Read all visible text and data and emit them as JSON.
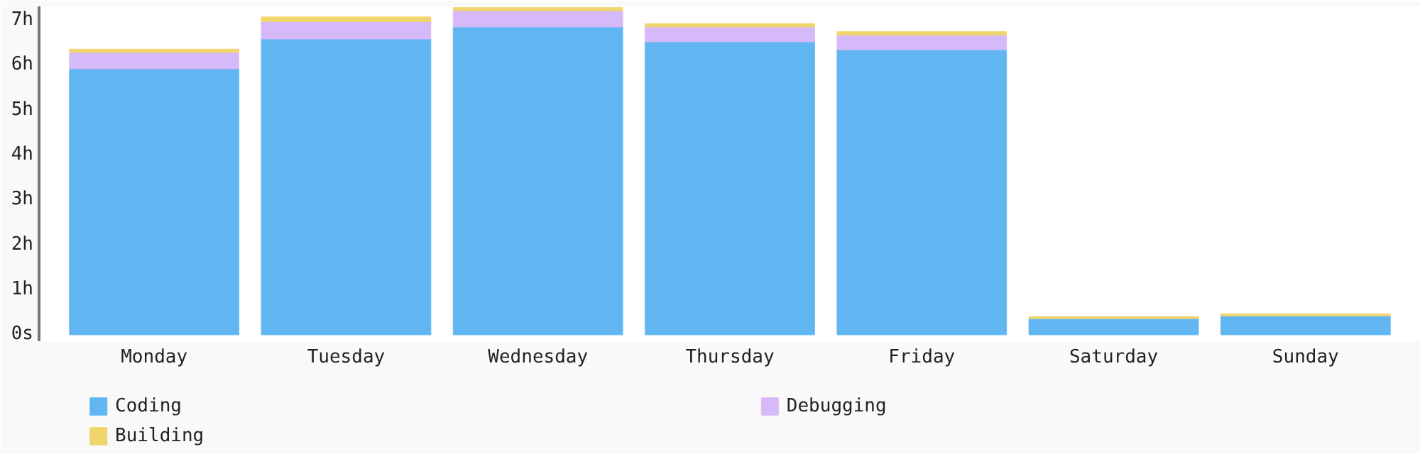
{
  "chart_data": {
    "type": "bar",
    "stacked": true,
    "categories": [
      "Monday",
      "Tuesday",
      "Wednesday",
      "Thursday",
      "Friday",
      "Saturday",
      "Sunday"
    ],
    "series": [
      {
        "name": "Coding",
        "color": "#61b6f2",
        "values": [
          5.92,
          6.58,
          6.85,
          6.52,
          6.34,
          0.36,
          0.42
        ]
      },
      {
        "name": "Debugging",
        "color": "#d6b9f8",
        "values": [
          0.36,
          0.39,
          0.36,
          0.33,
          0.33,
          0,
          0
        ]
      },
      {
        "name": "Building",
        "color": "#efd56c",
        "values": [
          0.06,
          0.09,
          0.06,
          0.06,
          0.06,
          0.03,
          0.03
        ]
      }
    ],
    "ylim": [
      -0.15,
      7.3
    ],
    "yticks": [
      {
        "value": 0,
        "label": "0s"
      },
      {
        "value": 1,
        "label": "1h"
      },
      {
        "value": 2,
        "label": "2h"
      },
      {
        "value": 3,
        "label": "3h"
      },
      {
        "value": 4,
        "label": "4h"
      },
      {
        "value": 5,
        "label": "5h"
      },
      {
        "value": 6,
        "label": "6h"
      },
      {
        "value": 7,
        "label": "7h"
      }
    ],
    "grid": false,
    "legend": "bottom"
  }
}
